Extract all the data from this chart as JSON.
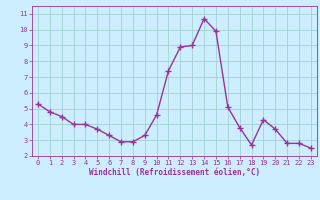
{
  "x": [
    0,
    1,
    2,
    3,
    4,
    5,
    6,
    7,
    8,
    9,
    10,
    11,
    12,
    13,
    14,
    15,
    16,
    17,
    18,
    19,
    20,
    21,
    22,
    23
  ],
  "y": [
    5.3,
    4.8,
    4.5,
    4.0,
    4.0,
    3.7,
    3.3,
    2.9,
    2.9,
    3.3,
    4.6,
    7.4,
    8.9,
    9.0,
    10.7,
    9.9,
    5.1,
    3.8,
    2.7,
    4.3,
    3.7,
    2.8,
    2.8,
    2.5
  ],
  "line_color": "#993399",
  "marker": "+",
  "marker_size": 4,
  "line_width": 1.0,
  "bg_color": "#cceeff",
  "grid_color": "#99cccc",
  "xlabel": "Windchill (Refroidissement éolien,°C)",
  "xlabel_color": "#993399",
  "tick_color": "#993399",
  "xlim": [
    -0.5,
    23.5
  ],
  "ylim": [
    2,
    11.5
  ],
  "yticks": [
    2,
    3,
    4,
    5,
    6,
    7,
    8,
    9,
    10,
    11
  ],
  "xticks": [
    0,
    1,
    2,
    3,
    4,
    5,
    6,
    7,
    8,
    9,
    10,
    11,
    12,
    13,
    14,
    15,
    16,
    17,
    18,
    19,
    20,
    21,
    22,
    23
  ],
  "figsize": [
    3.2,
    2.0
  ],
  "dpi": 100
}
